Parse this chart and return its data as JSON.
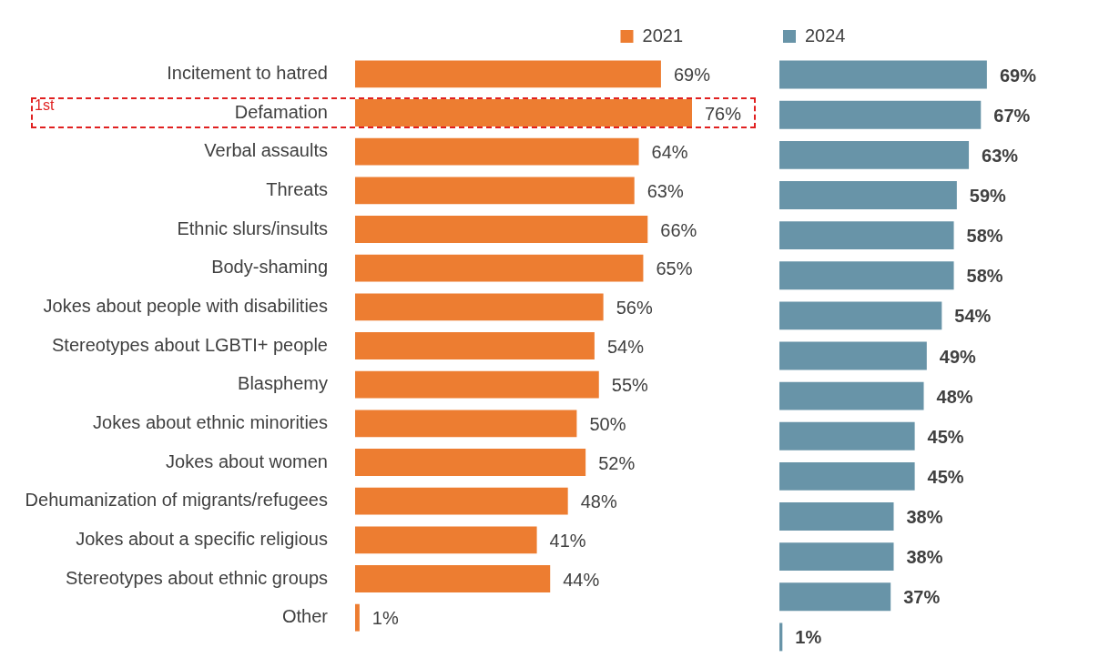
{
  "chart_data": [
    {
      "type": "bar",
      "orientation": "horizontal",
      "categories": [
        "Incitement to hatred",
        "Defamation",
        "Verbal assaults",
        "Threats",
        "Ethnic slurs/insults",
        "Body-shaming",
        "Jokes about people with disabilities",
        "Stereotypes about LGBTI+ people",
        "Blasphemy",
        "Jokes about ethnic minorities",
        "Jokes about women",
        "Dehumanization of migrants/refugees",
        "Jokes about a specific religious",
        "Stereotypes about ethnic groups",
        "Other"
      ],
      "legend": "top",
      "tick_labels": "y",
      "annotations": [
        "1st"
      ],
      "series": [
        {
          "name": "2021",
          "color": "#ed7d31",
          "values": [
            69,
            76,
            64,
            63,
            66,
            65,
            56,
            54,
            55,
            50,
            52,
            48,
            41,
            44,
            1
          ],
          "value_labels": [
            "69%",
            "76%",
            "64%",
            "63%",
            "66%",
            "65%",
            "56%",
            "54%",
            "55%",
            "50%",
            "52%",
            "48%",
            "41%",
            "44%",
            "1%"
          ]
        }
      ]
    },
    {
      "type": "bar",
      "orientation": "horizontal",
      "categories": [
        null,
        null,
        null,
        null,
        null,
        null,
        null,
        null,
        null,
        null,
        null,
        null,
        null,
        null,
        null
      ],
      "legend": "top",
      "tick_labels": false,
      "series": [
        {
          "name": "2024",
          "color": "#6894a8",
          "values": [
            69,
            67,
            63,
            59,
            58,
            58,
            54,
            49,
            48,
            45,
            45,
            38,
            38,
            37,
            1
          ],
          "value_labels": [
            "69%",
            "67%",
            "63%",
            "59%",
            "58%",
            "58%",
            "54%",
            "49%",
            "48%",
            "45%",
            "45%",
            "38%",
            "38%",
            "37%",
            "1%"
          ]
        }
      ]
    }
  ]
}
